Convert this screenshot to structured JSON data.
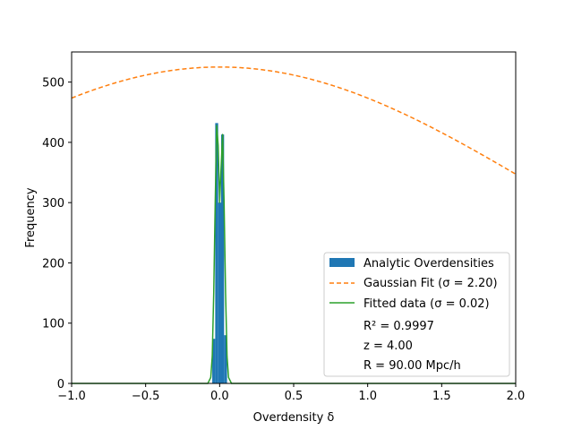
{
  "chart_data": {
    "type": "bar",
    "xlabel": "Overdensity δ",
    "ylabel": "Frequency",
    "xlim": [
      -1.0,
      2.0
    ],
    "ylim": [
      0,
      550
    ],
    "grid": false,
    "legend_position": "lower-right",
    "x_ticks": [
      {
        "value": -1.0,
        "label": "−1.0"
      },
      {
        "value": -0.5,
        "label": "−0.5"
      },
      {
        "value": 0.0,
        "label": "0.0"
      },
      {
        "value": 0.5,
        "label": "0.5"
      },
      {
        "value": 1.0,
        "label": "1.0"
      },
      {
        "value": 1.5,
        "label": "1.5"
      },
      {
        "value": 2.0,
        "label": "2.0"
      }
    ],
    "y_ticks": [
      {
        "value": 0,
        "label": "0"
      },
      {
        "value": 100,
        "label": "100"
      },
      {
        "value": 200,
        "label": "200"
      },
      {
        "value": 300,
        "label": "300"
      },
      {
        "value": 400,
        "label": "400"
      },
      {
        "value": 500,
        "label": "500"
      }
    ],
    "histogram": {
      "name": "Analytic Overdensities",
      "color": "#1f77b4",
      "bins": [
        {
          "x0": -0.05,
          "x1": -0.03,
          "value": 74
        },
        {
          "x0": -0.03,
          "x1": -0.01,
          "value": 432
        },
        {
          "x0": -0.01,
          "x1": 0.01,
          "value": 300
        },
        {
          "x0": 0.01,
          "x1": 0.03,
          "value": 413
        },
        {
          "x0": 0.03,
          "x1": 0.05,
          "value": 80
        }
      ]
    },
    "series": [
      {
        "name": "Gaussian Fit (σ = 2.20)",
        "style": "dashed",
        "color": "#ff7f0e",
        "amplitude": 525,
        "mean": 0.0,
        "sigma": 2.2
      },
      {
        "name": "Fitted data (σ = 0.02)",
        "style": "solid",
        "color": "#2ca02c",
        "x": [
          -1.0,
          -0.1,
          -0.08,
          -0.06,
          -0.05,
          -0.04,
          -0.03,
          -0.02,
          -0.01,
          0.0,
          0.01,
          0.02,
          0.03,
          0.04,
          0.05,
          0.06,
          0.08,
          0.1,
          2.0
        ],
        "y": [
          0,
          0,
          0,
          10,
          45,
          150,
          300,
          428,
          395,
          300,
          360,
          413,
          300,
          150,
          45,
          10,
          0,
          0,
          0
        ]
      }
    ],
    "annotations": [
      "R² = 0.9997",
      "z = 4.00",
      "R = 90.00 Mpc/h"
    ]
  }
}
